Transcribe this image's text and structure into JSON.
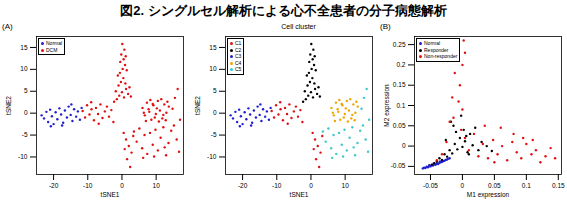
{
  "title": "図2. シングルセル解析による心不全患者の分子病態解析",
  "chart_data": [
    {
      "type": "scatter",
      "annotation": "(A)",
      "xlabel": "tSNE1",
      "ylabel": "tSNE2",
      "xlim": [
        -25,
        18
      ],
      "xticks": [
        -20,
        -10,
        0,
        10
      ],
      "ylim": [
        -14,
        17.5
      ],
      "yticks": [
        -10,
        -5,
        0,
        5,
        10,
        15
      ],
      "legend": "top-left",
      "marker": "circle",
      "series": [
        {
          "name": "Normal",
          "color": "#1f1fd0",
          "x": [
            -23.5,
            -22.8,
            -22.1,
            -21.6,
            -21.0,
            -20.5,
            -20.0,
            -19.4,
            -18.9,
            -18.3,
            -17.8,
            -17.2,
            -16.7,
            -16.1,
            -15.6,
            -15.0,
            -14.5,
            -14.0,
            -13.4,
            -12.9,
            -12.3,
            -11.8,
            -20.8,
            -17.5,
            -14.8
          ],
          "y": [
            -0.5,
            -1.2,
            0.3,
            -2.0,
            0.8,
            -0.7,
            -2.5,
            0.2,
            -1.4,
            1.1,
            -0.3,
            -2.2,
            0.6,
            -1.0,
            1.5,
            -0.4,
            -1.8,
            0.9,
            -0.8,
            0.4,
            -1.5,
            1.2,
            -3.0,
            -2.8,
            2.0
          ]
        },
        {
          "name": "DCM",
          "color": "#e01010",
          "x": [
            -11.5,
            -10.8,
            -10.2,
            -9.5,
            -8.9,
            -8.2,
            -7.6,
            -7.0,
            -6.3,
            -5.7,
            -5.0,
            -4.4,
            -3.8,
            -3.1,
            -2.5,
            -9.0,
            -6.8,
            0.5,
            1.2,
            2.0,
            2.8,
            1.5,
            3.3,
            0.8,
            2.4,
            -1.5,
            -0.8,
            0.0,
            0.6,
            1.2,
            -1.0,
            -0.3,
            0.4,
            1.0,
            1.8,
            -0.6,
            0.2,
            0.9,
            -1.2,
            0.5,
            1.4,
            -0.2,
            0.7,
            2.2,
            -1.8,
            0.1,
            1.1,
            -0.5,
            2.6,
            -2.3,
            6.0,
            6.7,
            7.3,
            8.0,
            8.6,
            9.2,
            9.9,
            10.5,
            11.1,
            11.8,
            12.4,
            13.0,
            13.7,
            7.0,
            8.3,
            9.6,
            10.8,
            12.1,
            13.3,
            6.4,
            7.8,
            9.0,
            10.2,
            11.5,
            12.8,
            3.5,
            4.3,
            5.1,
            5.9,
            6.6,
            7.4,
            8.2,
            9.0,
            9.8,
            10.5,
            11.3,
            12.1,
            12.9,
            13.6,
            14.4,
            15.2,
            16.0,
            16.7,
            15.5,
            16.3,
            14.8,
            17.0,
            6.2,
            9.4,
            12.5
          ],
          "y": [
            0.5,
            -1.0,
            1.8,
            -0.3,
            0.9,
            -1.6,
            1.2,
            -0.2,
            2.0,
            -1.1,
            0.4,
            1.5,
            -0.8,
            0.7,
            -2.0,
            2.5,
            -2.4,
            -4.5,
            -6.0,
            -7.5,
            -9.0,
            -10.5,
            -5.2,
            -8.2,
            -12.3,
            3.2,
            4.0,
            4.8,
            3.6,
            5.5,
            6.3,
            7.1,
            8.0,
            6.8,
            4.4,
            9.2,
            10.1,
            11.0,
            8.6,
            12.3,
            9.8,
            13.4,
            14.5,
            5.9,
            5.0,
            15.8,
            13.0,
            11.7,
            3.8,
            2.6,
            1.2,
            -0.5,
            2.4,
            0.3,
            -1.5,
            1.8,
            -0.2,
            2.8,
            0.6,
            -1.2,
            2.0,
            0.1,
            1.5,
            -1.8,
            3.0,
            -1.0,
            -1.9,
            -0.4,
            2.6,
            0.1,
            0.9,
            2.1,
            1.1,
            3.2,
            -1.6,
            -4.2,
            -6.5,
            -3.5,
            -8.0,
            -5.0,
            -9.3,
            -4.5,
            -7.2,
            -3.8,
            -8.5,
            -5.6,
            -3.2,
            -9.6,
            -6.8,
            -4.0,
            -2.8,
            -6.0,
            -8.8,
            3.5,
            5.5,
            1.0,
            -1.5,
            -10.2,
            -9.9,
            -7.8
          ]
        }
      ]
    },
    {
      "type": "scatter",
      "title": "Cell cluster",
      "xlabel": "tSNE1",
      "ylabel": "tSNE2",
      "xlim": [
        -25,
        18
      ],
      "xticks": [
        -20,
        -10,
        0,
        10
      ],
      "ylim": [
        -14,
        17.5
      ],
      "yticks": [
        -10,
        -5,
        0,
        5,
        10,
        15
      ],
      "legend": "top-left",
      "marker": "circle",
      "series": [
        {
          "name": "C1",
          "color": "#e01010",
          "x": [
            -11.5,
            -10.8,
            -10.2,
            -9.5,
            -8.9,
            -8.2,
            -7.6,
            -7.0,
            -6.3,
            -5.7,
            -5.0,
            -4.4,
            -3.8,
            -3.1,
            -2.5,
            -9.0,
            -6.8,
            0.5,
            1.2,
            2.0,
            2.8,
            1.5,
            3.3,
            0.8,
            2.4
          ],
          "y": [
            0.5,
            -1.0,
            1.8,
            -0.3,
            0.9,
            -1.6,
            1.2,
            -0.2,
            2.0,
            -1.1,
            0.4,
            1.5,
            -0.8,
            0.7,
            -2.0,
            2.5,
            -2.4,
            -4.5,
            -6.0,
            -7.5,
            -9.0,
            -10.5,
            -5.2,
            -8.2,
            -12.3
          ]
        },
        {
          "name": "C2",
          "color": "#000000",
          "x": [
            -1.5,
            -0.8,
            0.0,
            0.6,
            1.2,
            -1.0,
            -0.3,
            0.4,
            1.0,
            1.8,
            -0.6,
            0.2,
            0.9,
            -1.2,
            0.5,
            1.4,
            -0.2,
            0.7,
            2.2,
            -1.8,
            0.1,
            1.1,
            -0.5,
            2.6,
            -2.3
          ],
          "y": [
            3.2,
            4.0,
            4.8,
            3.6,
            5.5,
            6.3,
            7.1,
            8.0,
            6.8,
            4.4,
            9.2,
            10.1,
            11.0,
            8.6,
            12.3,
            9.8,
            13.4,
            14.5,
            5.9,
            5.0,
            15.8,
            13.0,
            11.7,
            3.8,
            2.6
          ]
        },
        {
          "name": "C3",
          "color": "#1f1fd0",
          "x": [
            -23.5,
            -22.8,
            -22.1,
            -21.6,
            -21.0,
            -20.5,
            -20.0,
            -19.4,
            -18.9,
            -18.3,
            -17.8,
            -17.2,
            -16.7,
            -16.1,
            -15.6,
            -15.0,
            -14.5,
            -14.0,
            -13.4,
            -12.9,
            -12.3,
            -11.8,
            -20.8,
            -17.5,
            -14.8
          ],
          "y": [
            -0.5,
            -1.2,
            0.3,
            -2.0,
            0.8,
            -0.7,
            -2.5,
            0.2,
            -1.4,
            1.1,
            -0.3,
            -2.2,
            0.6,
            -1.0,
            1.5,
            -0.4,
            -1.8,
            0.9,
            -0.8,
            0.4,
            -1.5,
            1.2,
            -3.0,
            -2.8,
            2.0
          ]
        },
        {
          "name": "C4",
          "color": "#f0a500",
          "x": [
            6.0,
            6.7,
            7.3,
            8.0,
            8.6,
            9.2,
            9.9,
            10.5,
            11.1,
            11.8,
            12.4,
            13.0,
            13.7,
            7.0,
            8.3,
            9.6,
            10.8,
            12.1,
            13.3,
            6.4,
            7.8,
            9.0,
            10.2,
            11.5,
            12.8
          ],
          "y": [
            1.2,
            -0.5,
            2.4,
            0.3,
            -1.5,
            1.8,
            -0.2,
            2.8,
            0.6,
            -1.2,
            2.0,
            0.1,
            1.5,
            -1.8,
            3.0,
            -1.0,
            -1.9,
            -0.4,
            2.6,
            0.1,
            0.9,
            2.1,
            1.1,
            3.2,
            -1.6
          ]
        },
        {
          "name": "C5",
          "color": "#3cc8c8",
          "x": [
            3.5,
            4.3,
            5.1,
            5.9,
            6.6,
            7.4,
            8.2,
            9.0,
            9.8,
            10.5,
            11.3,
            12.1,
            12.9,
            13.6,
            14.4,
            15.2,
            16.0,
            16.7,
            15.5,
            16.3,
            14.8,
            17.0,
            6.2,
            9.4,
            12.5
          ],
          "y": [
            -4.2,
            -6.5,
            -3.5,
            -8.0,
            -5.0,
            -9.3,
            -4.5,
            -7.2,
            -3.8,
            -8.5,
            -5.6,
            -3.2,
            -9.6,
            -6.8,
            -4.0,
            -2.8,
            -6.0,
            -8.8,
            3.5,
            5.5,
            1.0,
            -1.5,
            -10.2,
            -9.9,
            -7.8
          ]
        }
      ]
    },
    {
      "type": "scatter",
      "annotation": "(B)",
      "xlabel": "M1 expression",
      "ylabel": "M2 expression",
      "xlim": [
        -0.075,
        0.155
      ],
      "xticks": [
        -0.05,
        0,
        0.05,
        0.1,
        0.15
      ],
      "ylim": [
        -0.07,
        0.27
      ],
      "yticks": [
        -0.05,
        0,
        0.05,
        0.1,
        0.15,
        0.2,
        0.25
      ],
      "legend": "top-left",
      "marker": "circle",
      "series": [
        {
          "name": "Normal",
          "color": "#1f1fd0",
          "x": [
            -0.062,
            -0.06,
            -0.058,
            -0.056,
            -0.054,
            -0.052,
            -0.05,
            -0.048,
            -0.046,
            -0.044,
            -0.042,
            -0.04,
            -0.038,
            -0.036,
            -0.034,
            -0.032,
            -0.03,
            -0.028,
            -0.026,
            -0.024,
            -0.022,
            -0.02,
            -0.045,
            -0.035,
            -0.052
          ],
          "y": [
            -0.055,
            -0.053,
            -0.054,
            -0.051,
            -0.052,
            -0.049,
            -0.05,
            -0.047,
            -0.048,
            -0.045,
            -0.046,
            -0.043,
            -0.044,
            -0.041,
            -0.04,
            -0.039,
            -0.037,
            -0.036,
            -0.034,
            -0.033,
            -0.031,
            -0.03,
            -0.043,
            -0.038,
            -0.047
          ]
        },
        {
          "name": "Responder",
          "color": "#000000",
          "x": [
            -0.048,
            -0.044,
            -0.04,
            -0.036,
            -0.032,
            -0.028,
            -0.024,
            -0.02,
            -0.016,
            -0.012,
            -0.008,
            -0.004,
            0.0,
            0.004,
            0.008,
            0.012,
            0.016,
            0.02,
            0.025,
            0.03,
            -0.018,
            -0.01,
            -0.002,
            0.006,
            -0.026,
            -0.014,
            0.002,
            0.01,
            0.038,
            0.046
          ],
          "y": [
            -0.046,
            -0.042,
            -0.038,
            -0.03,
            -0.034,
            -0.02,
            -0.026,
            -0.01,
            -0.018,
            0.005,
            -0.008,
            0.02,
            -0.002,
            0.012,
            -0.015,
            0.03,
            0.002,
            0.045,
            -0.01,
            0.01,
            0.06,
            0.035,
            0.075,
            0.025,
            0.015,
            0.05,
            0.04,
            -0.02,
            0.0,
            -0.012
          ]
        },
        {
          "name": "Non-responder",
          "color": "#e01010",
          "x": [
            -0.04,
            -0.032,
            -0.025,
            -0.02,
            -0.016,
            -0.012,
            0.004,
            -0.004,
            0.0,
            0.002,
            0.0,
            -0.006,
            -0.014,
            -0.002,
            0.004,
            0.01,
            0.018,
            0.025,
            0.032,
            0.04,
            0.048,
            0.055,
            0.062,
            0.07,
            0.078,
            0.085,
            0.092,
            0.1,
            0.108,
            0.115,
            0.122,
            0.13,
            0.138,
            0.145,
            0.06,
            0.08,
            0.095,
            0.11,
            0.05,
            0.035
          ],
          "y": [
            -0.035,
            -0.02,
            0.01,
            0.06,
            0.12,
            0.18,
            0.23,
            0.15,
            0.09,
            0.26,
            0.2,
            0.11,
            0.07,
            0.04,
            0.02,
            -0.01,
            0.03,
            -0.025,
            0.005,
            -0.03,
            0.015,
            -0.02,
            0.0,
            -0.035,
            0.01,
            -0.015,
            -0.03,
            0.005,
            -0.02,
            -0.01,
            -0.04,
            -0.025,
            -0.005,
            -0.03,
            0.045,
            0.03,
            0.02,
            0.015,
            -0.04,
            0.05
          ]
        }
      ]
    }
  ]
}
